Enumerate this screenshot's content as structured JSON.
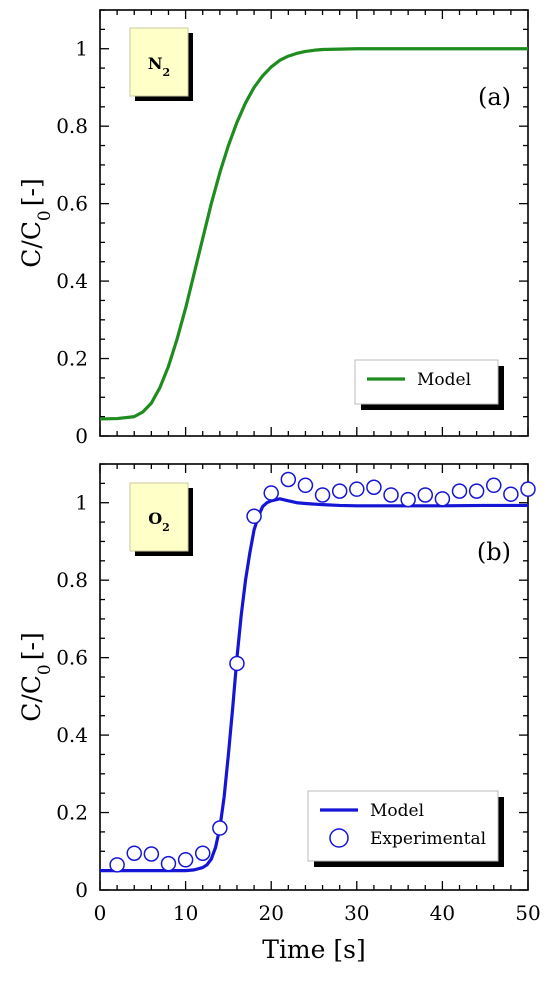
{
  "chart_data": [
    {
      "type": "line",
      "panel_tag": "(a)",
      "gas_label": "N",
      "gas_sub": "2",
      "xlim": [
        0,
        50
      ],
      "ylim": [
        0,
        1.1
      ],
      "xticks": [
        0,
        10,
        20,
        30,
        40,
        50
      ],
      "yticks": [
        0,
        0.2,
        0.4,
        0.6,
        0.8,
        1
      ],
      "ytick_labels": [
        "0",
        "0.2",
        "0.4",
        "0.6",
        "0.8",
        "1"
      ],
      "ylabel": "C/C",
      "ylabel_sub": "0",
      "ylabel_suffix": "[-]",
      "grid": false,
      "legend_position": "bottom-right",
      "series": [
        {
          "name": "Model",
          "kind": "line",
          "color": "#1e8c1e",
          "x": [
            0,
            2,
            4,
            5,
            6,
            7,
            8,
            9,
            10,
            11,
            12,
            13,
            14,
            15,
            16,
            17,
            18,
            19,
            20,
            21,
            22,
            23,
            24,
            25,
            26,
            28,
            30,
            35,
            40,
            45,
            50
          ],
          "y": [
            0.044,
            0.045,
            0.05,
            0.062,
            0.085,
            0.125,
            0.18,
            0.25,
            0.33,
            0.42,
            0.51,
            0.6,
            0.68,
            0.75,
            0.81,
            0.86,
            0.9,
            0.93,
            0.953,
            0.97,
            0.981,
            0.988,
            0.993,
            0.996,
            0.998,
            0.999,
            1.0,
            1.0,
            1.0,
            1.0,
            1.0
          ]
        }
      ]
    },
    {
      "type": "line",
      "panel_tag": "(b)",
      "gas_label": "O",
      "gas_sub": "2",
      "xlim": [
        0,
        50
      ],
      "ylim": [
        0,
        1.1
      ],
      "xticks": [
        0,
        10,
        20,
        30,
        40,
        50
      ],
      "xtick_labels": [
        "0",
        "10",
        "20",
        "30",
        "40",
        "50"
      ],
      "yticks": [
        0,
        0.2,
        0.4,
        0.6,
        0.8,
        1
      ],
      "ytick_labels": [
        "0",
        "0.2",
        "0.4",
        "0.6",
        "0.8",
        "1"
      ],
      "xlabel": "Time [s]",
      "ylabel": "C/C",
      "ylabel_sub": "0",
      "ylabel_suffix": "[-]",
      "grid": false,
      "legend_position": "bottom-right",
      "series": [
        {
          "name": "Model",
          "kind": "line",
          "color": "#1515d6",
          "x": [
            0,
            5,
            10,
            11,
            12,
            12.5,
            13,
            13.5,
            14,
            14.5,
            15,
            15.5,
            16,
            16.5,
            17,
            17.5,
            18,
            18.5,
            19,
            19.5,
            20,
            21,
            22,
            23,
            24,
            26,
            28,
            30,
            35,
            40,
            45,
            50
          ],
          "y": [
            0.05,
            0.05,
            0.05,
            0.052,
            0.058,
            0.065,
            0.08,
            0.11,
            0.16,
            0.24,
            0.35,
            0.47,
            0.6,
            0.71,
            0.8,
            0.87,
            0.93,
            0.965,
            0.99,
            1.0,
            1.005,
            1.01,
            1.005,
            1.0,
            0.998,
            0.995,
            0.993,
            0.992,
            0.992,
            0.992,
            0.993,
            0.993
          ]
        },
        {
          "name": "Experimental",
          "kind": "scatter",
          "color": "#1515d6",
          "x": [
            2,
            4,
            6,
            8,
            10,
            12,
            14,
            16,
            18,
            20,
            22,
            24,
            26,
            28,
            30,
            32,
            34,
            36,
            38,
            40,
            42,
            44,
            46,
            48,
            50
          ],
          "y": [
            0.065,
            0.095,
            0.093,
            0.068,
            0.078,
            0.095,
            0.16,
            0.585,
            0.965,
            1.025,
            1.06,
            1.045,
            1.02,
            1.03,
            1.035,
            1.04,
            1.02,
            1.008,
            1.02,
            1.01,
            1.03,
            1.03,
            1.045,
            1.022,
            1.035
          ]
        }
      ]
    }
  ]
}
